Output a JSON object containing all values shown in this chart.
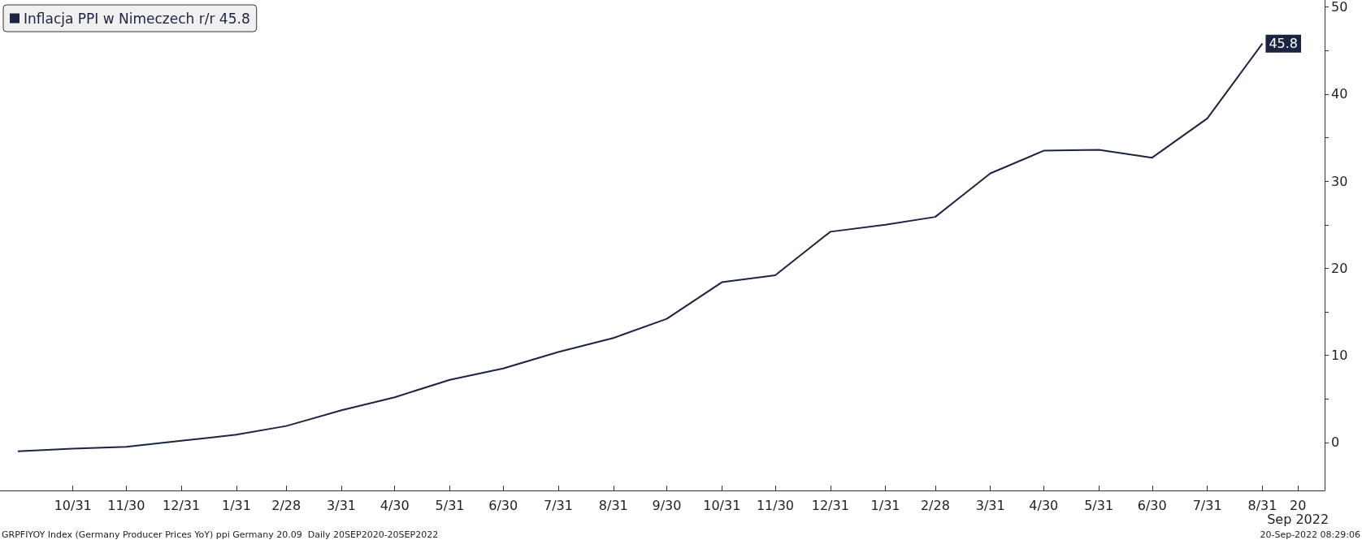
{
  "chart_data": {
    "type": "line",
    "x": [
      "2020-09-30",
      "2020-10-31",
      "2020-11-30",
      "2020-12-31",
      "2021-01-31",
      "2021-02-28",
      "2021-03-31",
      "2021-04-30",
      "2021-05-31",
      "2021-06-30",
      "2021-07-31",
      "2021-08-31",
      "2021-09-30",
      "2021-10-31",
      "2021-11-30",
      "2021-12-31",
      "2022-01-31",
      "2022-02-28",
      "2022-03-31",
      "2022-04-30",
      "2022-05-31",
      "2022-06-30",
      "2022-07-31",
      "2022-08-31"
    ],
    "series": [
      {
        "name": "Inflacja PPI w Nimeczech r/r 45.8",
        "color": "#1b2442",
        "values": [
          -1.0,
          -0.7,
          -0.5,
          0.2,
          0.9,
          1.9,
          3.7,
          5.2,
          7.2,
          8.5,
          10.4,
          12.0,
          14.2,
          18.4,
          19.2,
          24.2,
          25.0,
          25.9,
          30.9,
          33.5,
          33.6,
          32.7,
          37.2,
          45.8
        ],
        "value_labels": [
          null,
          null,
          null,
          null,
          null,
          null,
          null,
          null,
          null,
          null,
          null,
          null,
          null,
          null,
          null,
          null,
          null,
          null,
          null,
          null,
          null,
          null,
          null,
          "45.8"
        ]
      }
    ],
    "xlim": [
      "2020-09-20",
      "2022-10-05"
    ],
    "xticks": [
      {
        "value": "2020-10-31",
        "label": "10/31"
      },
      {
        "value": "2020-11-30",
        "label": "11/30"
      },
      {
        "value": "2020-12-31",
        "label": "12/31"
      },
      {
        "value": "2021-01-31",
        "label": "1/31"
      },
      {
        "value": "2021-02-28",
        "label": "2/28"
      },
      {
        "value": "2021-03-31",
        "label": "3/31"
      },
      {
        "value": "2021-04-30",
        "label": "4/30"
      },
      {
        "value": "2021-05-31",
        "label": "5/31"
      },
      {
        "value": "2021-06-30",
        "label": "6/30"
      },
      {
        "value": "2021-07-31",
        "label": "7/31"
      },
      {
        "value": "2021-08-31",
        "label": "8/31"
      },
      {
        "value": "2021-09-30",
        "label": "9/30"
      },
      {
        "value": "2021-10-31",
        "label": "10/31"
      },
      {
        "value": "2021-11-30",
        "label": "11/30"
      },
      {
        "value": "2021-12-31",
        "label": "12/31"
      },
      {
        "value": "2022-01-31",
        "label": "1/31"
      },
      {
        "value": "2022-02-28",
        "label": "2/28"
      },
      {
        "value": "2022-03-31",
        "label": "3/31"
      },
      {
        "value": "2022-04-30",
        "label": "4/30"
      },
      {
        "value": "2022-05-31",
        "label": "5/31"
      },
      {
        "value": "2022-06-30",
        "label": "6/30"
      },
      {
        "value": "2022-07-31",
        "label": "7/31"
      },
      {
        "value": "2022-08-31",
        "label": "8/31"
      },
      {
        "value": "2022-09-20",
        "label": "20"
      }
    ],
    "ylim": [
      -5.5,
      50.8
    ],
    "yticks": [
      0,
      {
        "value": 5,
        "label": null
      },
      10,
      {
        "value": 15,
        "label": null
      },
      20,
      {
        "value": 25,
        "label": null
      },
      30,
      {
        "value": 35,
        "label": null
      },
      40,
      {
        "value": 45,
        "label": null
      },
      50
    ],
    "grid": false,
    "legend": "top left",
    "marker": "none",
    "line_style": "solid",
    "annotations": [
      "Sep 2022",
      "GRPFIYOY Index (Germany Producer Prices YoY) ppi Germany 20.09  Daily 20SEP2020-20SEP2022",
      "20-Sep-2022 08:29:06"
    ]
  }
}
